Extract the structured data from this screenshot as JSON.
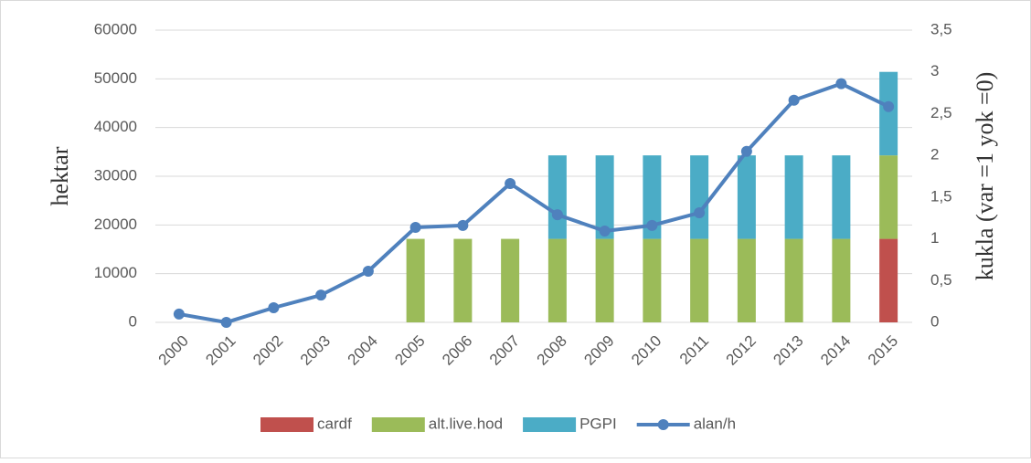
{
  "chart_data": {
    "type": "bar-line",
    "y_label": "hektar",
    "y2_label": "kukla  (var =1 yok =0)",
    "categories": [
      "2000",
      "2001",
      "2002",
      "2003",
      "2004",
      "2005",
      "2006",
      "2007",
      "2008",
      "2009",
      "2010",
      "2011",
      "2012",
      "2013",
      "2014",
      "2015"
    ],
    "ylim": [
      0,
      60000
    ],
    "yticks": [
      0,
      10000,
      20000,
      30000,
      40000,
      50000,
      60000
    ],
    "y2lim": [
      0,
      3.5
    ],
    "y2ticks": [
      0,
      {
        "value": 0.5,
        "label": "0,5"
      },
      1,
      {
        "value": 1.5,
        "label": "1,5"
      },
      2,
      {
        "value": 2.5,
        "label": "2,5"
      },
      3,
      {
        "value": 3.5,
        "label": "3,5"
      }
    ],
    "grid": true,
    "legend": "bottom",
    "series": [
      {
        "name": "cardf",
        "color": "#c0504d",
        "kind": "bar",
        "axis": "y2",
        "values": [
          null,
          null,
          null,
          null,
          null,
          null,
          null,
          null,
          null,
          null,
          null,
          null,
          null,
          null,
          null,
          1
        ]
      },
      {
        "name": "alt.live.hod",
        "color": "#9bbb59",
        "kind": "bar",
        "axis": "y2",
        "values": [
          null,
          null,
          null,
          null,
          null,
          1,
          1,
          1,
          1,
          1,
          1,
          1,
          1,
          1,
          1,
          1
        ]
      },
      {
        "name": "PGPI",
        "color": "#4bacc6",
        "kind": "bar",
        "axis": "y2",
        "values": [
          null,
          null,
          null,
          null,
          null,
          null,
          null,
          null,
          1,
          1,
          1,
          1,
          1,
          1,
          1,
          1
        ]
      },
      {
        "name": "alan/h",
        "color": "#4f81bd",
        "kind": "line",
        "values": [
          1700,
          0,
          3000,
          5600,
          10500,
          19500,
          19900,
          28500,
          22100,
          18750,
          19900,
          22500,
          35100,
          45600,
          49000,
          44300
        ]
      }
    ]
  }
}
